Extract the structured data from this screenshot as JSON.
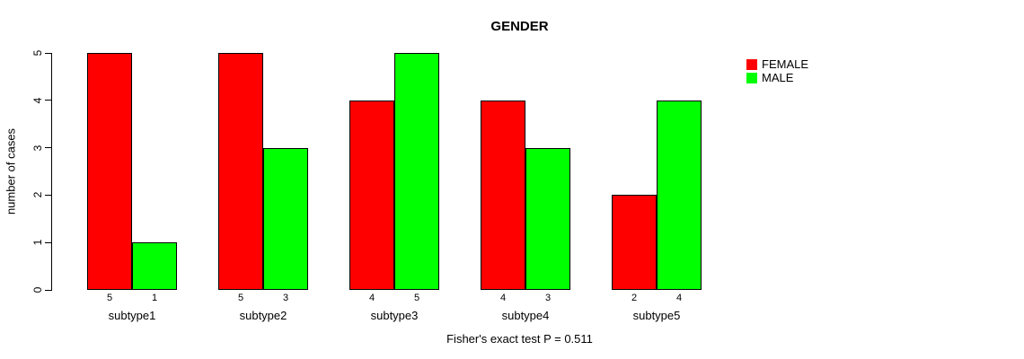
{
  "caption": "Fisher's exact test P = 0.511",
  "chart_data": {
    "type": "bar",
    "title": "GENDER",
    "xlabel": "",
    "ylabel": "number of cases",
    "ylim": [
      0,
      5
    ],
    "yticks": [
      0,
      1,
      2,
      3,
      4,
      5
    ],
    "grid": false,
    "legend_position": "top-right",
    "bar_value_labels_shown": true,
    "categories": [
      "subtype1",
      "subtype2",
      "subtype3",
      "subtype4",
      "subtype5"
    ],
    "series": [
      {
        "name": "FEMALE",
        "color": "#ff0000",
        "values": [
          5,
          5,
          4,
          4,
          2
        ]
      },
      {
        "name": "MALE",
        "color": "#00ff00",
        "values": [
          1,
          3,
          5,
          3,
          4
        ]
      }
    ]
  }
}
